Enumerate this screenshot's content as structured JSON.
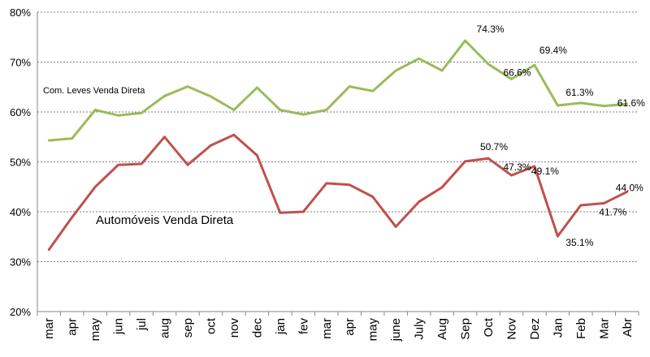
{
  "chart_data": {
    "type": "line",
    "ylim": [
      20,
      80
    ],
    "y_ticks": [
      "20%",
      "30%",
      "40%",
      "50%",
      "60%",
      "70%",
      "80%"
    ],
    "grid": "horizontal dashed",
    "legend": "inline labels",
    "categories": [
      "mar",
      "apr",
      "may",
      "jun",
      "jul",
      "aug",
      "sep",
      "oct",
      "nov",
      "dec",
      "jan",
      "fev",
      "mar",
      "apr",
      "may",
      "june",
      "July",
      "Aug",
      "Sep",
      "Oct",
      "Nov",
      "Dez",
      "Jan",
      "Feb",
      "Mar",
      "Abr"
    ],
    "series": [
      {
        "name": "Com. Leves Venda Direta",
        "color": "#9bbb59",
        "values": [
          54.3,
          54.7,
          60.4,
          59.3,
          59.8,
          63.2,
          65.1,
          63.1,
          60.4,
          64.9,
          60.4,
          59.5,
          60.4,
          65.1,
          64.2,
          68.3,
          70.7,
          68.3,
          74.3,
          69.6,
          66.6,
          69.4,
          61.3,
          61.8,
          61.2,
          61.6
        ]
      },
      {
        "name": "Automóveis Venda Direta",
        "color": "#c0504d",
        "values": [
          32.4,
          38.9,
          45.0,
          49.4,
          49.6,
          55.0,
          49.4,
          53.3,
          55.4,
          51.3,
          39.8,
          40.0,
          45.7,
          45.4,
          43.0,
          37.0,
          42.0,
          44.9,
          50.1,
          50.7,
          47.3,
          49.1,
          35.1,
          41.3,
          41.7,
          44.0
        ]
      }
    ],
    "data_labels": [
      {
        "series": 0,
        "index": 18,
        "text": "74.3%"
      },
      {
        "series": 0,
        "index": 20,
        "text": "66.6%"
      },
      {
        "series": 0,
        "index": 21,
        "text": "69.4%"
      },
      {
        "series": 0,
        "index": 22,
        "text": "61.3%"
      },
      {
        "series": 0,
        "index": 25,
        "text": "61.6%"
      },
      {
        "series": 1,
        "index": 19,
        "text": "50.7%"
      },
      {
        "series": 1,
        "index": 20,
        "text": "47.3%"
      },
      {
        "series": 1,
        "index": 21,
        "text": "49.1%"
      },
      {
        "series": 1,
        "index": 22,
        "text": "35.1%"
      },
      {
        "series": 1,
        "index": 24,
        "text": "41.7%"
      },
      {
        "series": 1,
        "index": 25,
        "text": "44.0%"
      }
    ]
  }
}
